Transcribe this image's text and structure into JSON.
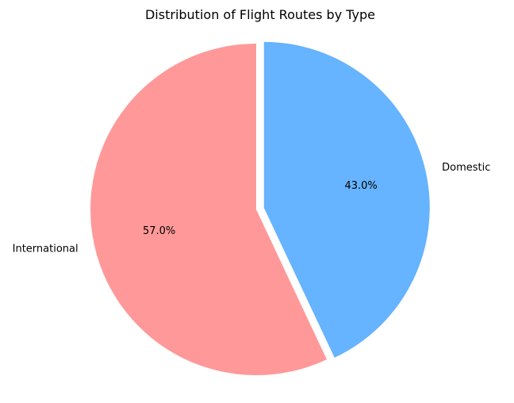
{
  "chart_data": {
    "type": "pie",
    "title": "Distribution of Flight Routes by Type",
    "slices": [
      {
        "label": "Domestic",
        "value": 43.0,
        "pct_label": "43.0%",
        "color": "#66b3ff",
        "exploded": true
      },
      {
        "label": "International",
        "value": 57.0,
        "pct_label": "57.0%",
        "color": "#ff9999",
        "exploded": false
      }
    ],
    "start_angle_deg": 90,
    "direction": "clockwise",
    "legend": "none"
  }
}
